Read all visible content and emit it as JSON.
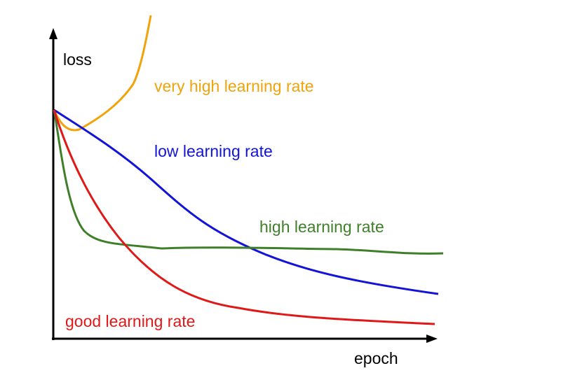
{
  "axes": {
    "y_label": "loss",
    "x_label": "epoch"
  },
  "curves": [
    {
      "label": "very high learning rate"
    },
    {
      "label": "low learning rate"
    },
    {
      "label": "high learning rate"
    },
    {
      "label": "good learning rate"
    }
  ]
}
